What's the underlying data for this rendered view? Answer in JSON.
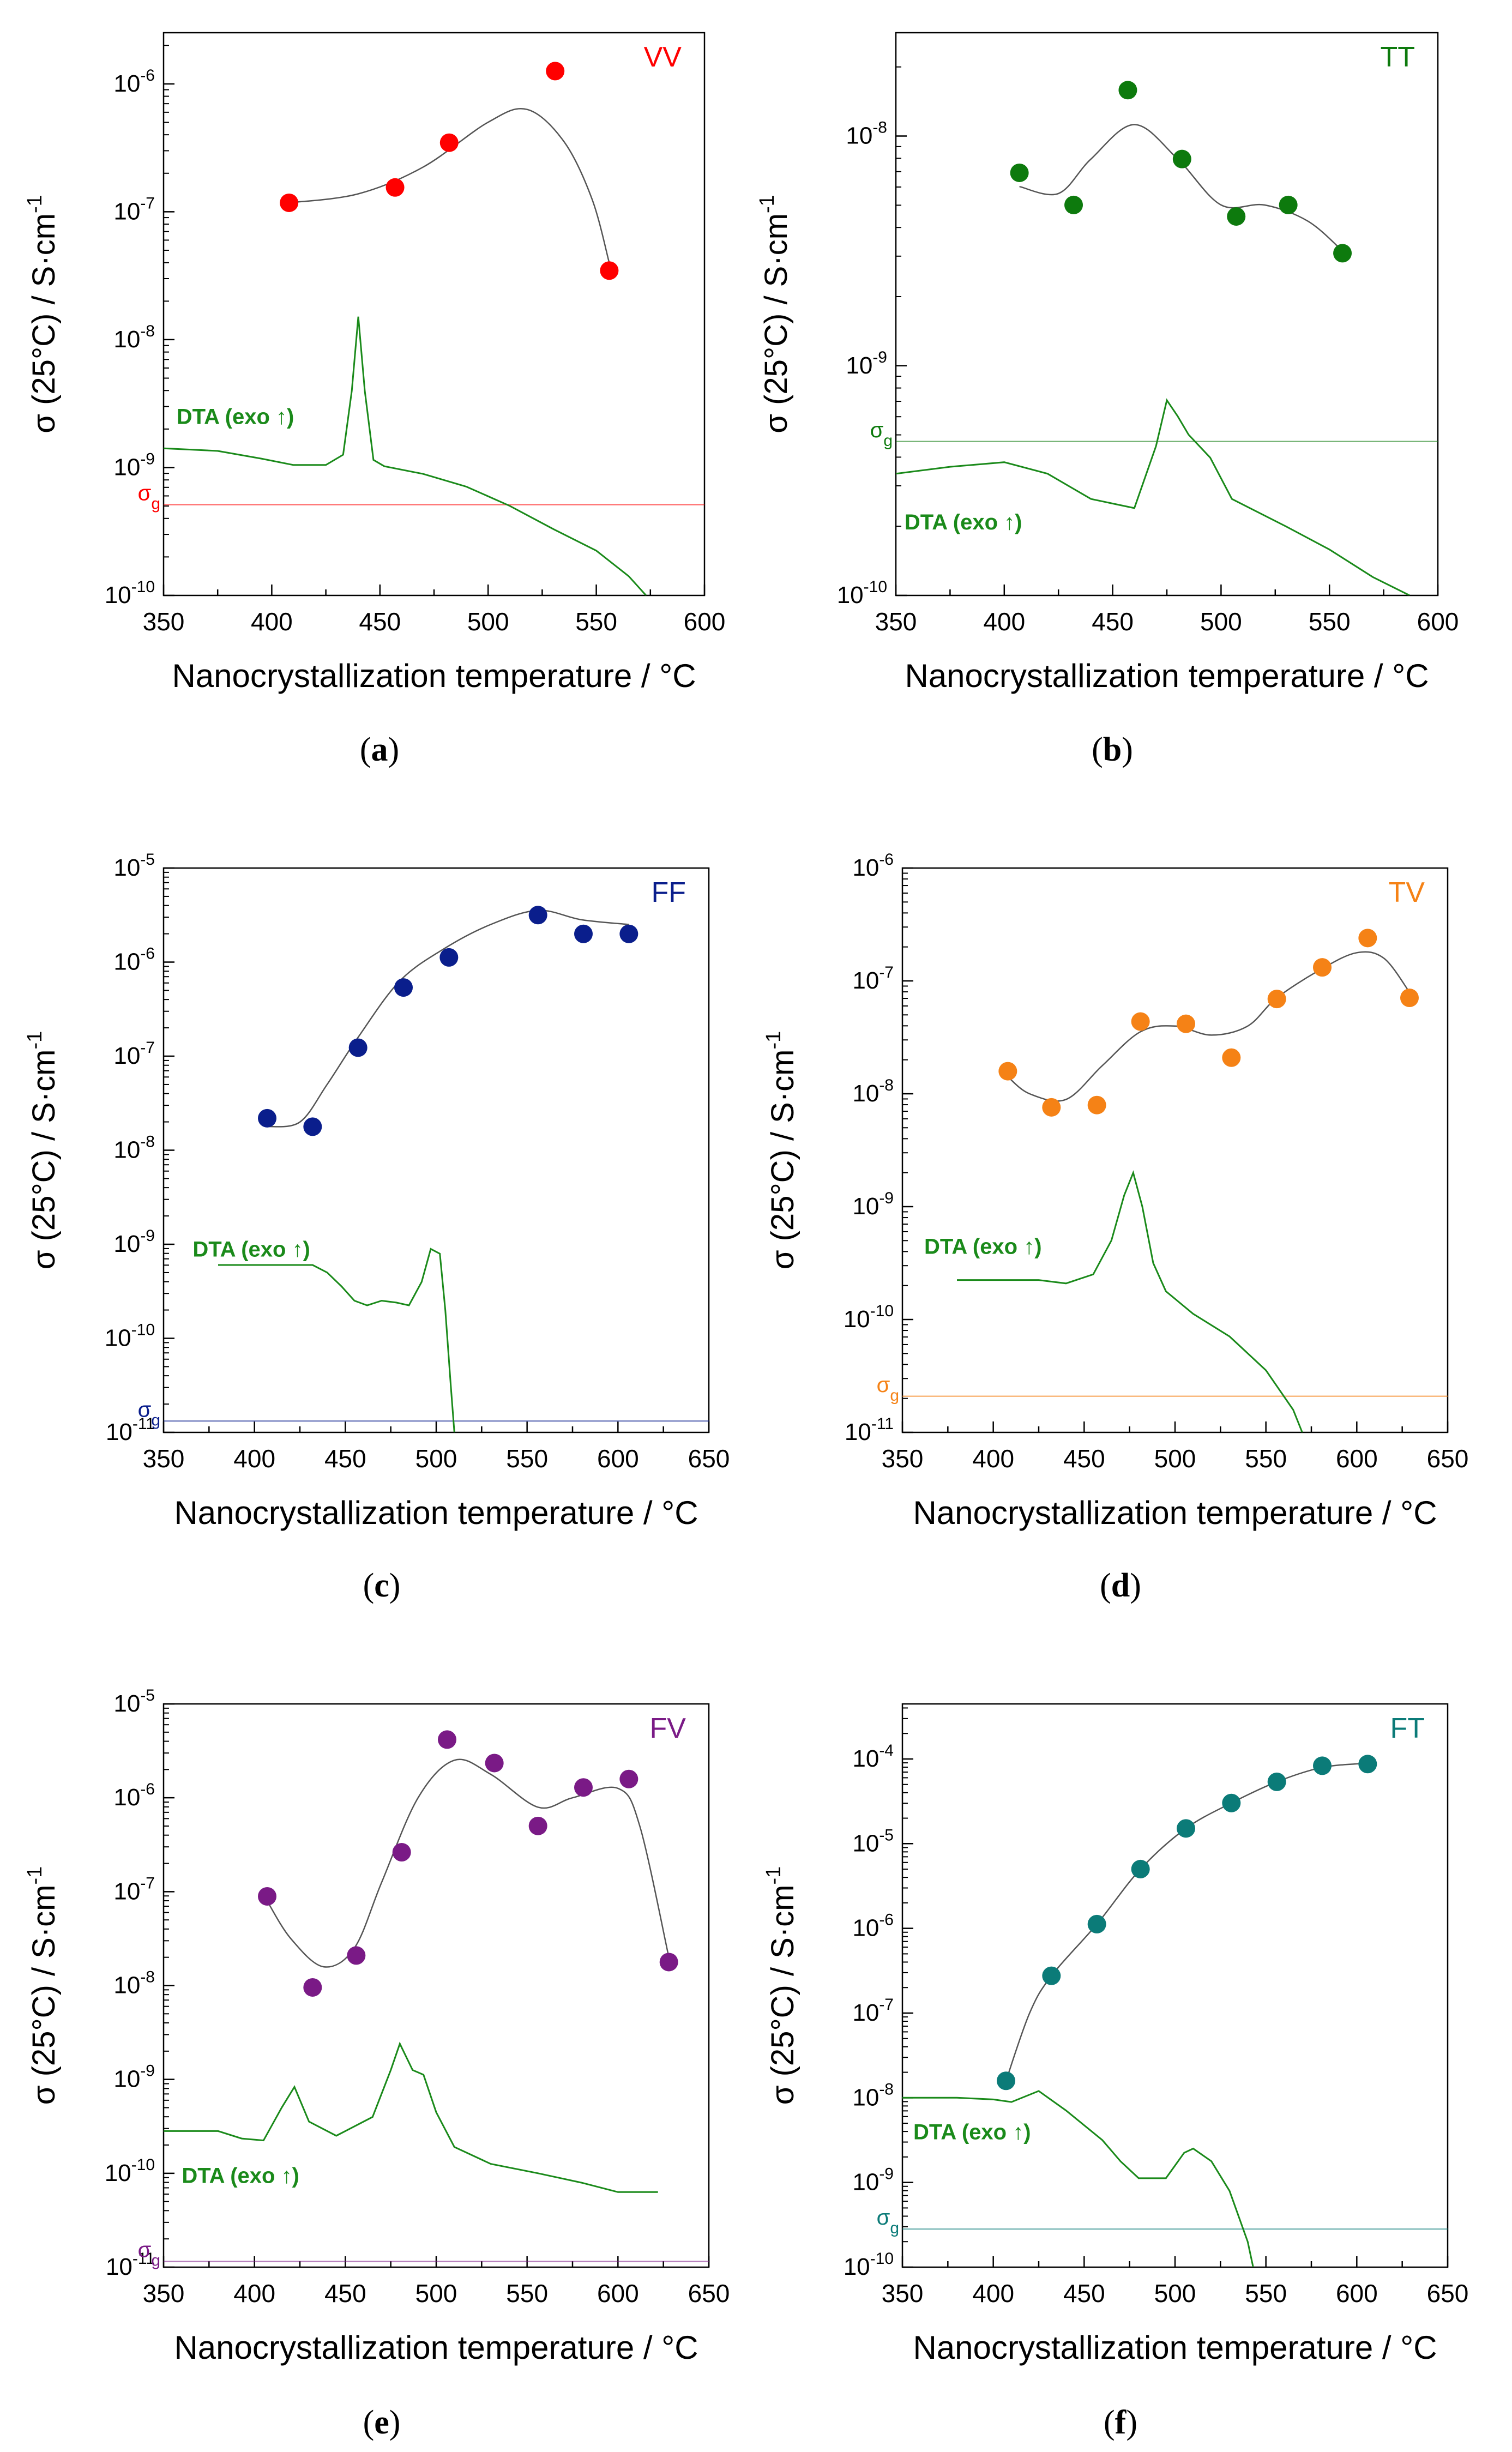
{
  "figure": {
    "marker_size_hint": "large"
  },
  "chart_data": [
    {
      "id": "a",
      "type": "scatter",
      "caption_letter": "a",
      "sample_label": "VV",
      "color": "#ff0000",
      "xlabel": "Nanocrystallization temperature / °C",
      "ylabel": "σ (25°C) / S·cm-1",
      "xlim": [
        350,
        600
      ],
      "x_ticks": [
        350,
        400,
        450,
        500,
        550,
        600
      ],
      "ylim_exp": [
        -10,
        -5.6
      ],
      "y_tick_exps": [
        -10,
        -9,
        -8,
        -7,
        -6
      ],
      "points": {
        "x": [
          408,
          457,
          482,
          531,
          556
        ],
        "y_exp": [
          -6.93,
          -6.81,
          -6.46,
          -5.9,
          -7.46
        ]
      },
      "fit": {
        "x": [
          408,
          440,
          470,
          500,
          518,
          535,
          548,
          556
        ],
        "y_exp": [
          -6.93,
          -6.86,
          -6.65,
          -6.3,
          -6.2,
          -6.45,
          -6.9,
          -7.4
        ]
      },
      "sigma_g_exp": -9.29,
      "dta_label": "DTA (exo ↑)",
      "dta_color": "#1a8a1a",
      "dta": {
        "x": [
          350,
          375,
          395,
          410,
          425,
          433,
          437,
          440,
          443,
          447,
          452,
          470,
          490,
          510,
          530,
          550,
          565,
          573
        ],
        "y_exp": [
          -8.85,
          -8.87,
          -8.93,
          -8.98,
          -8.98,
          -8.9,
          -8.4,
          -7.82,
          -8.4,
          -8.94,
          -8.99,
          -9.05,
          -9.15,
          -9.3,
          -9.48,
          -9.65,
          -9.85,
          -10.0
        ]
      },
      "dta_label_pos": {
        "x": 356,
        "y_exp": -8.6
      }
    },
    {
      "id": "b",
      "type": "scatter",
      "caption_letter": "b",
      "sample_label": "TT",
      "color": "#0d7a0d",
      "xlabel": "Nanocrystallization temperature / °C",
      "ylabel": "σ (25°C) / S·cm-1",
      "xlim": [
        350,
        600
      ],
      "x_ticks": [
        350,
        400,
        450,
        500,
        550,
        600
      ],
      "ylim_exp": [
        -10,
        -7.55
      ],
      "y_tick_exps": [
        -10,
        -9,
        -8
      ],
      "points": {
        "x": [
          407,
          432,
          457,
          482,
          507,
          531,
          556
        ],
        "y_exp": [
          -8.16,
          -8.3,
          -7.8,
          -8.1,
          -8.35,
          -8.3,
          -8.51
        ]
      },
      "fit": {
        "x": [
          407,
          425,
          440,
          460,
          480,
          500,
          520,
          540,
          556
        ],
        "y_exp": [
          -8.22,
          -8.25,
          -8.1,
          -7.95,
          -8.1,
          -8.3,
          -8.3,
          -8.37,
          -8.5
        ]
      },
      "sigma_g_exp": -9.33,
      "dta_label": "DTA (exo ↑)",
      "dta_color": "#1a8a1a",
      "dta": {
        "x": [
          350,
          375,
          400,
          420,
          440,
          460,
          470,
          475,
          480,
          485,
          495,
          505,
          530,
          550,
          570,
          587
        ],
        "y_exp": [
          -9.47,
          -9.44,
          -9.42,
          -9.47,
          -9.58,
          -9.62,
          -9.35,
          -9.15,
          -9.22,
          -9.3,
          -9.4,
          -9.58,
          -9.7,
          -9.8,
          -9.92,
          -10.0
        ]
      },
      "dta_label_pos": {
        "x": 354,
        "y_exp": -9.68
      }
    },
    {
      "id": "c",
      "type": "scatter",
      "caption_letter": "c",
      "sample_label": "FF",
      "color": "#0a1e8c",
      "xlabel": "Nanocrystallization temperature / °C",
      "ylabel": "σ (25°C) / S·cm-1",
      "xlim": [
        350,
        650
      ],
      "x_ticks": [
        350,
        400,
        450,
        500,
        550,
        600,
        650
      ],
      "ylim_exp": [
        -11,
        -5
      ],
      "y_tick_exps": [
        -11,
        -10,
        -9,
        -8,
        -7,
        -6,
        -5
      ],
      "points": {
        "x": [
          407,
          432,
          457,
          482,
          507,
          556,
          581,
          606
        ],
        "y_exp": [
          -7.66,
          -7.75,
          -6.91,
          -6.27,
          -5.95,
          -5.5,
          -5.7,
          -5.7
        ]
      },
      "fit": {
        "x": [
          407,
          425,
          440,
          457,
          480,
          505,
          530,
          556,
          580,
          606
        ],
        "y_exp": [
          -7.75,
          -7.7,
          -7.3,
          -6.8,
          -6.2,
          -5.85,
          -5.6,
          -5.45,
          -5.55,
          -5.6
        ]
      },
      "sigma_g_exp": -10.88,
      "dta_label": "DTA (exo ↑)",
      "dta_color": "#1a8a1a",
      "dta": {
        "x": [
          380,
          410,
          425,
          432,
          440,
          448,
          455,
          462,
          470,
          478,
          485,
          492,
          497,
          502,
          505,
          508,
          510
        ],
        "y_exp": [
          -9.22,
          -9.22,
          -9.22,
          -9.22,
          -9.3,
          -9.45,
          -9.6,
          -9.65,
          -9.6,
          -9.62,
          -9.65,
          -9.4,
          -9.05,
          -9.1,
          -9.7,
          -10.5,
          -11.0
        ]
      },
      "dta_label_pos": {
        "x": 366,
        "y_exp": -9.05
      }
    },
    {
      "id": "d",
      "type": "scatter",
      "caption_letter": "d",
      "sample_label": "TV",
      "color": "#f58216",
      "xlabel": "Nanocrystallization temperature / °C",
      "ylabel": "σ (25°C) / S·cm-1",
      "xlim": [
        350,
        650
      ],
      "x_ticks": [
        350,
        400,
        450,
        500,
        550,
        600,
        650
      ],
      "ylim_exp": [
        -11,
        -6
      ],
      "y_tick_exps": [
        -11,
        -10,
        -9,
        -8,
        -7,
        -6
      ],
      "points": {
        "x": [
          408,
          432,
          457,
          481,
          506,
          531,
          556,
          581,
          606,
          629
        ],
        "y_exp": [
          -7.8,
          -8.12,
          -8.1,
          -7.36,
          -7.38,
          -7.68,
          -7.16,
          -6.88,
          -6.62,
          -7.15
        ]
      },
      "fit": {
        "x": [
          408,
          420,
          440,
          460,
          481,
          500,
          520,
          540,
          556,
          580,
          600,
          615,
          629
        ],
        "y_exp": [
          -7.85,
          -8.0,
          -8.05,
          -7.75,
          -7.45,
          -7.4,
          -7.48,
          -7.4,
          -7.15,
          -6.9,
          -6.75,
          -6.8,
          -7.1
        ]
      },
      "sigma_g_exp": -10.68,
      "dta_label": "DTA (exo ↑)",
      "dta_color": "#1a8a1a",
      "dta": {
        "x": [
          380,
          400,
          425,
          440,
          455,
          465,
          472,
          477,
          482,
          488,
          495,
          510,
          530,
          550,
          565,
          570
        ],
        "y_exp": [
          -9.65,
          -9.65,
          -9.65,
          -9.68,
          -9.6,
          -9.3,
          -8.9,
          -8.7,
          -9.0,
          -9.5,
          -9.75,
          -9.95,
          -10.15,
          -10.45,
          -10.8,
          -11.0
        ]
      },
      "dta_label_pos": {
        "x": 362,
        "y_exp": -9.35
      }
    },
    {
      "id": "e",
      "type": "scatter",
      "caption_letter": "e",
      "sample_label": "FV",
      "color": "#7a1a86",
      "xlabel": "Nanocrystallization temperature / °C",
      "ylabel": "σ (25°C) / S·cm-1",
      "xlim": [
        350,
        650
      ],
      "x_ticks": [
        350,
        400,
        450,
        500,
        550,
        600,
        650
      ],
      "ylim_exp": [
        -11,
        -5
      ],
      "y_tick_exps": [
        -11,
        -10,
        -9,
        -8,
        -7,
        -6,
        -5
      ],
      "points": {
        "x": [
          407,
          432,
          456,
          481,
          506,
          532,
          556,
          581,
          606,
          628
        ],
        "y_exp": [
          -7.05,
          -8.02,
          -7.68,
          -6.58,
          -5.38,
          -5.63,
          -6.3,
          -5.89,
          -5.8,
          -7.75
        ]
      },
      "fit": {
        "x": [
          407,
          420,
          438,
          455,
          470,
          490,
          510,
          530,
          556,
          575,
          600,
          612,
          628
        ],
        "y_exp": [
          -7.1,
          -7.5,
          -7.8,
          -7.6,
          -6.9,
          -6.0,
          -5.6,
          -5.75,
          -6.1,
          -6.0,
          -5.9,
          -6.3,
          -7.7
        ]
      },
      "sigma_g_exp": -10.94,
      "dta_label": "DTA (exo ↑)",
      "dta_color": "#1a8a1a",
      "dta": {
        "x": [
          350,
          380,
          393,
          405,
          415,
          422,
          430,
          445,
          465,
          475,
          480,
          487,
          493,
          500,
          510,
          530,
          556,
          580,
          600,
          622
        ],
        "y_exp": [
          -9.55,
          -9.55,
          -9.63,
          -9.65,
          -9.3,
          -9.08,
          -9.45,
          -9.6,
          -9.4,
          -8.9,
          -8.62,
          -8.9,
          -8.95,
          -9.35,
          -9.72,
          -9.9,
          -10.0,
          -10.1,
          -10.2,
          -10.2
        ]
      },
      "dta_label_pos": {
        "x": 360,
        "y_exp": -10.02
      }
    },
    {
      "id": "f",
      "type": "scatter",
      "caption_letter": "f",
      "sample_label": "FT",
      "color": "#0b7b78",
      "xlabel": "Nanocrystallization temperature / °C",
      "ylabel": "σ (25°C) / S·cm-1",
      "xlim": [
        350,
        650
      ],
      "x_ticks": [
        350,
        400,
        450,
        500,
        550,
        600,
        650
      ],
      "ylim_exp": [
        -10,
        -3.35
      ],
      "y_tick_exps": [
        -10,
        -9,
        -8,
        -7,
        -6,
        -5,
        -4
      ],
      "points": {
        "x": [
          407,
          432,
          457,
          481,
          506,
          531,
          556,
          581,
          606
        ],
        "y_exp": [
          -7.8,
          -6.56,
          -5.95,
          -5.3,
          -4.82,
          -4.52,
          -4.27,
          -4.08,
          -4.06
        ]
      },
      "fit": {
        "x": [
          407,
          420,
          432,
          457,
          481,
          506,
          531,
          556,
          581,
          606
        ],
        "y_exp": [
          -7.8,
          -7.0,
          -6.56,
          -5.95,
          -5.3,
          -4.82,
          -4.52,
          -4.27,
          -4.1,
          -4.05
        ]
      },
      "sigma_g_exp": -9.55,
      "dta_label": "DTA (exo ↑)",
      "dta_color": "#1a8a1a",
      "dta": {
        "x": [
          350,
          380,
          400,
          410,
          425,
          440,
          460,
          470,
          480,
          495,
          500,
          505,
          510,
          520,
          530,
          540,
          543
        ],
        "y_exp": [
          -8.0,
          -8.0,
          -8.02,
          -8.05,
          -7.92,
          -8.15,
          -8.5,
          -8.75,
          -8.95,
          -8.95,
          -8.8,
          -8.65,
          -8.6,
          -8.75,
          -9.1,
          -9.7,
          -10.0
        ]
      },
      "dta_label_pos": {
        "x": 356,
        "y_exp": -8.4
      }
    }
  ]
}
